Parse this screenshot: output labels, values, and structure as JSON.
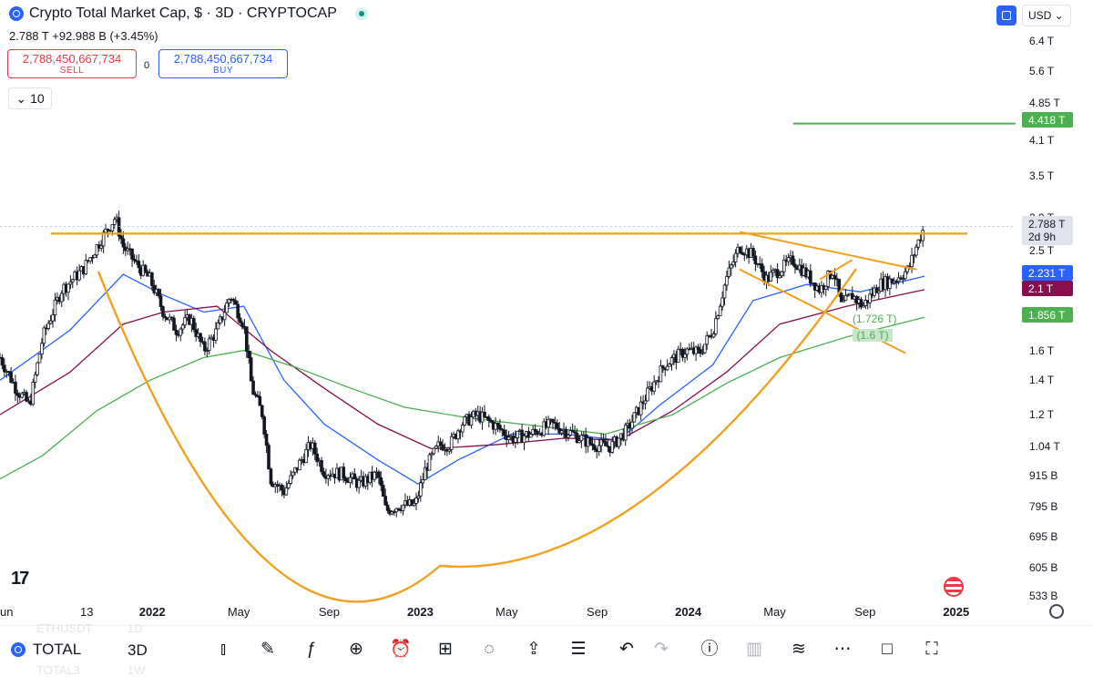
{
  "header": {
    "title": "Crypto Total Market Cap, $ · 3D · CRYPTOCAP",
    "price_line": "2.788 T  +92.988 B (+3.45%)"
  },
  "trade": {
    "sell_value": "2,788,450,667,734",
    "sell_label": "SELL",
    "spread": "0",
    "buy_value": "2,788,450,667,734",
    "buy_label": "BUY"
  },
  "indicator_count": "10",
  "currency": "USD",
  "price_labels": {
    "current": "2.788 T",
    "countdown": "2d 9h",
    "target": "4.418 T",
    "ma_fast": "2.231 T",
    "ma_mid": "2.1 T",
    "ma_slow": "1.856 T"
  },
  "annotations": {
    "a1": "(1.726 T)",
    "a2": "(1.6 T)"
  },
  "toolbar": {
    "symbol": "TOTAL",
    "interval": "3D",
    "ghost_symbol": "ETHUSDT",
    "ghost_interval": "1D",
    "ghost_symbol2": "TOTAL3",
    "ghost_interval2": "1W"
  },
  "colors": {
    "up": "#131722",
    "ma_fast": "#2962ff",
    "ma_mid": "#880e4f",
    "ma_slow": "#4caf50",
    "pattern": "#f2a01f",
    "target": "#4caf50"
  },
  "chart_data": {
    "type": "candlestick",
    "title": "Crypto Total Market Cap, $ · 3D · CRYPTOCAP",
    "y_scale": "log",
    "ylim": [
      0.52,
      6.8
    ],
    "y_unit": "T",
    "y_ticks": [
      "6.4 T",
      "5.6 T",
      "4.85 T",
      "4.1 T",
      "3.5 T",
      "2.9 T",
      "2.5 T",
      "1.6 T",
      "1.4 T",
      "1.2 T",
      "1.04 T",
      "915 B",
      "795 B",
      "695 B",
      "605 B",
      "533 B"
    ],
    "x_ticks": [
      {
        "label": "un",
        "t": 2021.43
      },
      {
        "label": "13",
        "t": 2021.78
      },
      {
        "label": "2022",
        "t": 2022.0,
        "bold": true
      },
      {
        "label": "May",
        "t": 2022.33
      },
      {
        "label": "Sep",
        "t": 2022.67
      },
      {
        "label": "2023",
        "t": 2023.0,
        "bold": true
      },
      {
        "label": "May",
        "t": 2023.33
      },
      {
        "label": "Sep",
        "t": 2023.67
      },
      {
        "label": "2024",
        "t": 2024.0,
        "bold": true
      },
      {
        "label": "May",
        "t": 2024.33
      },
      {
        "label": "Sep",
        "t": 2024.67
      },
      {
        "label": "2025",
        "t": 2025.0,
        "bold": true
      }
    ],
    "xlim": [
      2021.44,
      2025.23
    ],
    "price_path": [
      [
        2021.44,
        1.55
      ],
      [
        2021.5,
        1.35
      ],
      [
        2021.55,
        1.25
      ],
      [
        2021.6,
        1.7
      ],
      [
        2021.67,
        2.1
      ],
      [
        2021.75,
        2.3
      ],
      [
        2021.84,
        2.75
      ],
      [
        2021.87,
        2.9
      ],
      [
        2021.9,
        2.55
      ],
      [
        2021.95,
        2.35
      ],
      [
        2022.0,
        2.2
      ],
      [
        2022.05,
        1.9
      ],
      [
        2022.1,
        1.75
      ],
      [
        2022.15,
        1.85
      ],
      [
        2022.2,
        1.6
      ],
      [
        2022.25,
        1.75
      ],
      [
        2022.3,
        2.05
      ],
      [
        2022.35,
        1.8
      ],
      [
        2022.38,
        1.35
      ],
      [
        2022.42,
        1.2
      ],
      [
        2022.45,
        0.9
      ],
      [
        2022.5,
        0.85
      ],
      [
        2022.55,
        0.95
      ],
      [
        2022.6,
        1.05
      ],
      [
        2022.65,
        0.93
      ],
      [
        2022.72,
        0.92
      ],
      [
        2022.78,
        0.88
      ],
      [
        2022.85,
        0.92
      ],
      [
        2022.88,
        0.78
      ],
      [
        2022.93,
        0.8
      ],
      [
        2022.99,
        0.8
      ],
      [
        2023.03,
        0.95
      ],
      [
        2023.08,
        1.05
      ],
      [
        2023.12,
        1.05
      ],
      [
        2023.16,
        1.15
      ],
      [
        2023.22,
        1.2
      ],
      [
        2023.28,
        1.15
      ],
      [
        2023.35,
        1.08
      ],
      [
        2023.42,
        1.1
      ],
      [
        2023.5,
        1.15
      ],
      [
        2023.58,
        1.1
      ],
      [
        2023.65,
        1.05
      ],
      [
        2023.72,
        1.04
      ],
      [
        2023.78,
        1.12
      ],
      [
        2023.85,
        1.3
      ],
      [
        2023.92,
        1.5
      ],
      [
        2024.0,
        1.6
      ],
      [
        2024.05,
        1.58
      ],
      [
        2024.1,
        1.75
      ],
      [
        2024.15,
        2.2
      ],
      [
        2024.2,
        2.55
      ],
      [
        2024.25,
        2.45
      ],
      [
        2024.3,
        2.2
      ],
      [
        2024.35,
        2.3
      ],
      [
        2024.4,
        2.4
      ],
      [
        2024.45,
        2.25
      ],
      [
        2024.5,
        2.1
      ],
      [
        2024.55,
        2.3
      ],
      [
        2024.58,
        1.95
      ],
      [
        2024.62,
        2.05
      ],
      [
        2024.66,
        1.95
      ],
      [
        2024.72,
        2.15
      ],
      [
        2024.78,
        2.2
      ],
      [
        2024.83,
        2.3
      ],
      [
        2024.86,
        2.55
      ],
      [
        2024.89,
        2.788
      ]
    ],
    "series": [
      {
        "name": "MA fast",
        "values": [
          [
            2021.44,
            1.4
          ],
          [
            2021.7,
            1.75
          ],
          [
            2021.9,
            2.25
          ],
          [
            2022.05,
            2.05
          ],
          [
            2022.2,
            1.9
          ],
          [
            2022.35,
            1.95
          ],
          [
            2022.5,
            1.4
          ],
          [
            2022.65,
            1.15
          ],
          [
            2022.85,
            0.98
          ],
          [
            2023.0,
            0.88
          ],
          [
            2023.15,
            0.98
          ],
          [
            2023.35,
            1.1
          ],
          [
            2023.55,
            1.1
          ],
          [
            2023.75,
            1.07
          ],
          [
            2023.9,
            1.25
          ],
          [
            2024.1,
            1.5
          ],
          [
            2024.25,
            2.0
          ],
          [
            2024.45,
            2.15
          ],
          [
            2024.65,
            2.08
          ],
          [
            2024.89,
            2.231
          ]
        ]
      },
      {
        "name": "MA mid",
        "values": [
          [
            2021.44,
            1.2
          ],
          [
            2021.7,
            1.45
          ],
          [
            2021.9,
            1.8
          ],
          [
            2022.05,
            1.9
          ],
          [
            2022.25,
            1.95
          ],
          [
            2022.45,
            1.6
          ],
          [
            2022.65,
            1.35
          ],
          [
            2022.85,
            1.15
          ],
          [
            2023.05,
            1.03
          ],
          [
            2023.3,
            1.05
          ],
          [
            2023.55,
            1.08
          ],
          [
            2023.75,
            1.07
          ],
          [
            2023.95,
            1.22
          ],
          [
            2024.15,
            1.45
          ],
          [
            2024.35,
            1.8
          ],
          [
            2024.6,
            1.95
          ],
          [
            2024.89,
            2.1
          ]
        ]
      },
      {
        "name": "MA slow",
        "values": [
          [
            2021.44,
            0.9
          ],
          [
            2021.6,
            1.0
          ],
          [
            2021.8,
            1.22
          ],
          [
            2022.0,
            1.4
          ],
          [
            2022.2,
            1.55
          ],
          [
            2022.35,
            1.6
          ],
          [
            2022.55,
            1.48
          ],
          [
            2022.75,
            1.35
          ],
          [
            2022.95,
            1.24
          ],
          [
            2023.2,
            1.18
          ],
          [
            2023.45,
            1.14
          ],
          [
            2023.7,
            1.1
          ],
          [
            2023.95,
            1.2
          ],
          [
            2024.15,
            1.38
          ],
          [
            2024.35,
            1.55
          ],
          [
            2024.6,
            1.7
          ],
          [
            2024.89,
            1.856
          ]
        ]
      }
    ],
    "lines": {
      "resistance": {
        "y": 2.7,
        "x": [
          2021.63,
          2025.05
        ]
      },
      "target": {
        "y": 4.418,
        "x": [
          2024.4,
          2025.23
        ]
      },
      "wedge_upper": [
        [
          2024.2,
          2.72
        ],
        [
          2024.86,
          2.3
        ]
      ],
      "wedge_lower": [
        [
          2024.2,
          2.3
        ],
        [
          2024.82,
          1.58
        ]
      ],
      "cup_guide": [
        [
          2024.5,
          2.2
        ],
        [
          2024.62,
          2.4
        ]
      ]
    }
  }
}
